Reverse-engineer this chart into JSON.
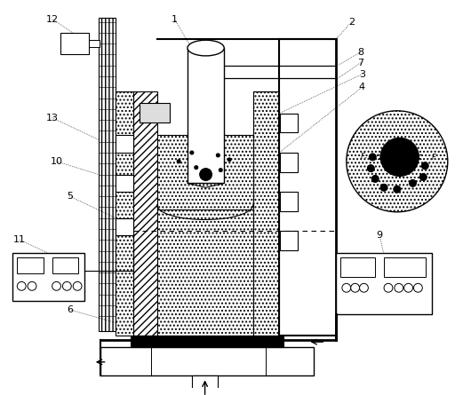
{
  "bg_color": "#ffffff",
  "lc": "#000000",
  "figsize": [
    5.3,
    4.45
  ],
  "dpi": 100
}
